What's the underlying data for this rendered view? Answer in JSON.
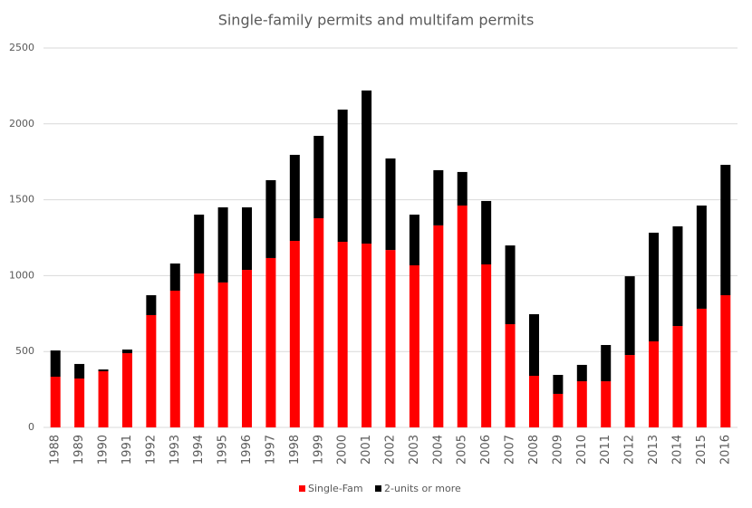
{
  "chart_data": {
    "type": "stacked-bar",
    "title": "Single-family permits and multifam permits",
    "categories": [
      "1988",
      "1989",
      "1990",
      "1991",
      "1992",
      "1993",
      "1994",
      "1995",
      "1996",
      "1997",
      "1998",
      "1999",
      "2000",
      "2001",
      "2002",
      "2003",
      "2004",
      "2005",
      "2006",
      "2007",
      "2008",
      "2009",
      "2010",
      "2011",
      "2012",
      "2013",
      "2014",
      "2015",
      "2016"
    ],
    "series": [
      {
        "name": "Single-Fam",
        "color": "#ff0000",
        "values": [
          334,
          322,
          370,
          489,
          740,
          901,
          1014,
          955,
          1038,
          1116,
          1229,
          1378,
          1223,
          1211,
          1169,
          1068,
          1331,
          1462,
          1074,
          680,
          340,
          221,
          304,
          304,
          477,
          567,
          668,
          782,
          871
        ]
      },
      {
        "name": "2-units or more",
        "color": "#000000",
        "values": [
          173,
          96,
          12,
          24,
          131,
          179,
          388,
          495,
          412,
          513,
          567,
          543,
          871,
          1009,
          603,
          334,
          364,
          221,
          418,
          519,
          406,
          125,
          108,
          239,
          519,
          716,
          657,
          680,
          859
        ]
      }
    ],
    "ylim": [
      0,
      2500
    ],
    "yticks": [
      0,
      500,
      1000,
      1500,
      2000,
      2500
    ],
    "grid": true,
    "legend": "bottom"
  }
}
